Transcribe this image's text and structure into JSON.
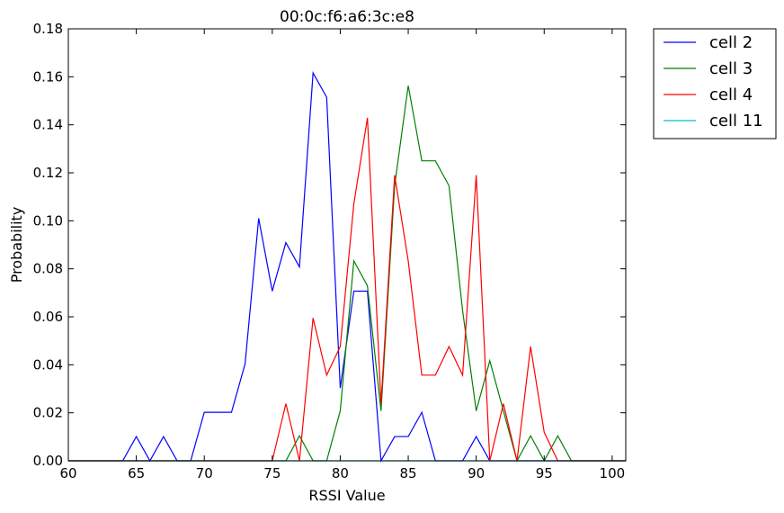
{
  "chart_data": {
    "type": "line",
    "title": "00:0c:f6:a6:3c:e8",
    "xlabel": "RSSI Value",
    "ylabel": "Probability",
    "xlim": [
      60,
      101
    ],
    "ylim": [
      0,
      0.18
    ],
    "xticks": [
      "60",
      "65",
      "70",
      "75",
      "80",
      "85",
      "90",
      "95",
      "100"
    ],
    "yticks": [
      "0.00",
      "0.02",
      "0.04",
      "0.06",
      "0.08",
      "0.10",
      "0.12",
      "0.14",
      "0.16",
      "0.18"
    ],
    "grid": false,
    "legend_position": "outside-top-right",
    "series": [
      {
        "name": "cell 2",
        "color": "#0000ff",
        "points": [
          [
            60,
            0
          ],
          [
            64,
            0
          ],
          [
            65,
            0.0101
          ],
          [
            66,
            0
          ],
          [
            67,
            0.0101
          ],
          [
            68,
            0
          ],
          [
            69,
            0
          ],
          [
            70,
            0.0202
          ],
          [
            71,
            0.0202
          ],
          [
            72,
            0.0202
          ],
          [
            73,
            0.0404
          ],
          [
            74,
            0.101
          ],
          [
            75,
            0.0707
          ],
          [
            76,
            0.0909
          ],
          [
            77,
            0.0808
          ],
          [
            78,
            0.1616
          ],
          [
            79,
            0.1515
          ],
          [
            80,
            0.0303
          ],
          [
            81,
            0.0707
          ],
          [
            82,
            0.0707
          ],
          [
            83,
            0
          ],
          [
            84,
            0.0101
          ],
          [
            85,
            0.0101
          ],
          [
            86,
            0.0202
          ],
          [
            87,
            0
          ],
          [
            88,
            0
          ],
          [
            89,
            0
          ],
          [
            90,
            0.0101
          ],
          [
            91,
            0
          ],
          [
            101,
            0
          ]
        ]
      },
      {
        "name": "cell 3",
        "color": "#008000",
        "points": [
          [
            60,
            0
          ],
          [
            76,
            0
          ],
          [
            77,
            0.0104
          ],
          [
            78,
            0
          ],
          [
            79,
            0
          ],
          [
            80,
            0.0208
          ],
          [
            81,
            0.0833
          ],
          [
            82,
            0.0729
          ],
          [
            83,
            0.0208
          ],
          [
            84,
            0.1146
          ],
          [
            85,
            0.1563
          ],
          [
            86,
            0.125
          ],
          [
            87,
            0.125
          ],
          [
            88,
            0.1146
          ],
          [
            89,
            0.0625
          ],
          [
            90,
            0.0208
          ],
          [
            91,
            0.0417
          ],
          [
            92,
            0.0208
          ],
          [
            93,
            0
          ],
          [
            94,
            0.0104
          ],
          [
            95,
            0
          ],
          [
            96,
            0.0104
          ],
          [
            97,
            0
          ],
          [
            101,
            0
          ]
        ]
      },
      {
        "name": "cell 4",
        "color": "#ff0000",
        "points": [
          [
            60,
            0
          ],
          [
            75,
            0
          ],
          [
            76,
            0.0238
          ],
          [
            77,
            0
          ],
          [
            78,
            0.0595
          ],
          [
            79,
            0.0357
          ],
          [
            80,
            0.0476
          ],
          [
            81,
            0.1071
          ],
          [
            82,
            0.1429
          ],
          [
            83,
            0.0238
          ],
          [
            84,
            0.119
          ],
          [
            85,
            0.0833
          ],
          [
            86,
            0.0357
          ],
          [
            87,
            0.0357
          ],
          [
            88,
            0.0476
          ],
          [
            89,
            0.0357
          ],
          [
            90,
            0.119
          ],
          [
            91,
            0
          ],
          [
            92,
            0.0238
          ],
          [
            93,
            0
          ],
          [
            94,
            0.0476
          ],
          [
            95,
            0.0119
          ],
          [
            96,
            0
          ],
          [
            101,
            0
          ]
        ]
      },
      {
        "name": "cell 11",
        "color": "#00bfbf",
        "points": [
          [
            60,
            0
          ],
          [
            101,
            0
          ]
        ]
      }
    ]
  }
}
